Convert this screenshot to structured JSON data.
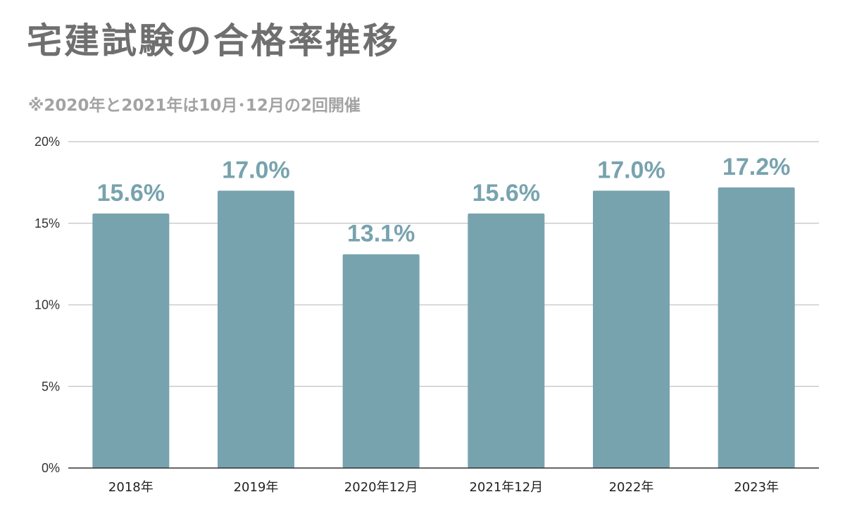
{
  "chart_data": {
    "type": "bar",
    "title": "宅建試験の合格率推移",
    "subtitle": "※2020年と2021年は10月･12月の2回開催",
    "categories": [
      "2018年",
      "2019年",
      "2020年12月",
      "2021年12月",
      "2022年",
      "2023年"
    ],
    "values": [
      15.6,
      17.0,
      13.1,
      15.6,
      17.0,
      17.2
    ],
    "data_labels": [
      "15.6%",
      "17.0%",
      "13.1%",
      "15.6%",
      "17.0%",
      "17.2%"
    ],
    "y_ticks": [
      {
        "value": 0,
        "label": "0%"
      },
      {
        "value": 5,
        "label": "5%"
      },
      {
        "value": 10,
        "label": "10%"
      },
      {
        "value": 15,
        "label": "15%"
      },
      {
        "value": 20,
        "label": "20%"
      }
    ],
    "ylim": [
      0,
      20
    ],
    "xlabel": "",
    "ylabel": "",
    "grid": true,
    "legend": "none",
    "colors": {
      "bar": "#77a3ae",
      "data_label": "#77a3ae",
      "title": "#6f6f6f",
      "subtitle": "#a3a3a3",
      "grid": "#cccccc",
      "axis": "#333333"
    }
  }
}
